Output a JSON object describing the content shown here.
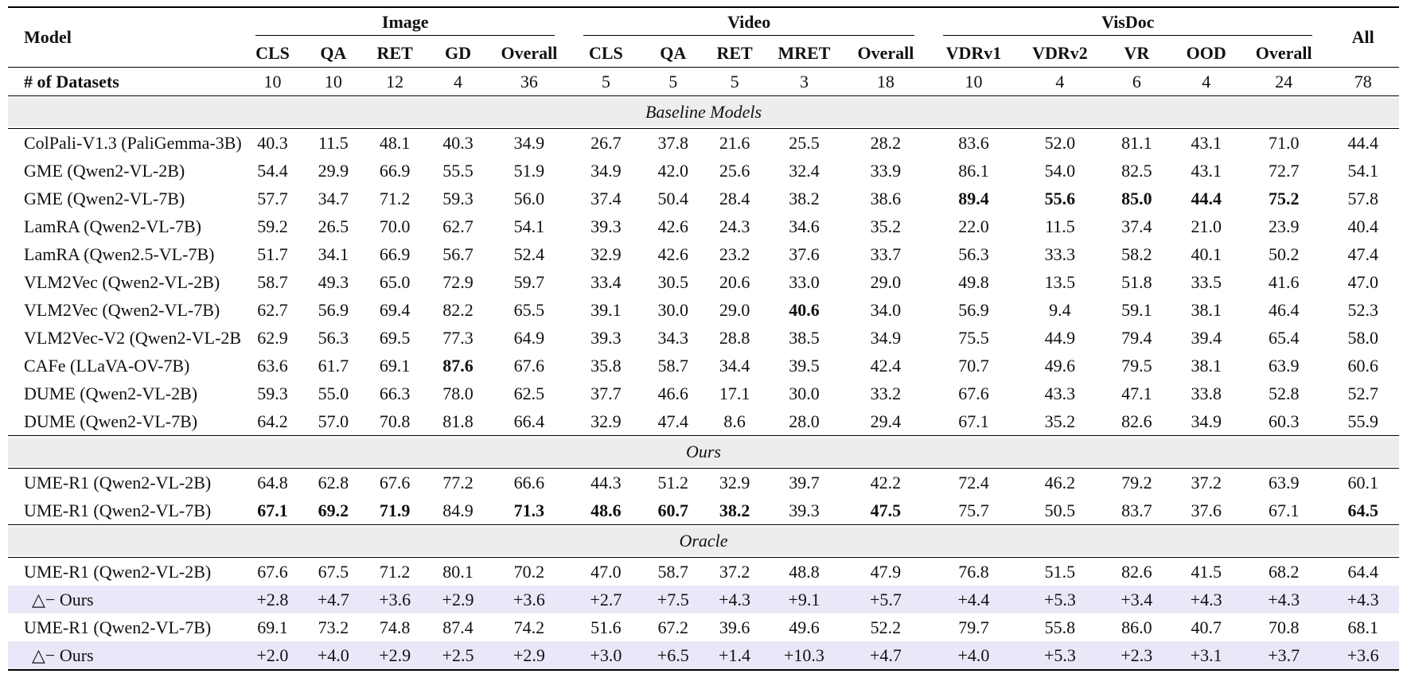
{
  "table": {
    "model_header": "Model",
    "all_header": "All",
    "colors": {
      "band_bg": "#ededed",
      "delta_bg": "#e8e8f8",
      "rule": "#000000"
    },
    "groups": [
      {
        "label": "Image",
        "columns": [
          "CLS",
          "QA",
          "RET",
          "GD",
          "Overall"
        ]
      },
      {
        "label": "Video",
        "columns": [
          "CLS",
          "QA",
          "RET",
          "MRET",
          "Overall"
        ]
      },
      {
        "label": "VisDoc",
        "columns": [
          "VDRv1",
          "VDRv2",
          "VR",
          "OOD",
          "Overall"
        ]
      }
    ],
    "datasets_row": {
      "label": "# of Datasets",
      "values": [
        "10",
        "10",
        "12",
        "4",
        "36",
        "5",
        "5",
        "5",
        "3",
        "18",
        "10",
        "4",
        "6",
        "4",
        "24",
        "78"
      ]
    },
    "sections": [
      {
        "title": "Baseline Models",
        "rows": [
          {
            "model": "ColPali-V1.3 (PaliGemma-3B)",
            "values": [
              "40.3",
              "11.5",
              "48.1",
              "40.3",
              "34.9",
              "26.7",
              "37.8",
              "21.6",
              "25.5",
              "28.2",
              "83.6",
              "52.0",
              "81.1",
              "43.1",
              "71.0",
              "44.4"
            ],
            "bold": [],
            "delta": false
          },
          {
            "model": "GME (Qwen2-VL-2B)",
            "values": [
              "54.4",
              "29.9",
              "66.9",
              "55.5",
              "51.9",
              "34.9",
              "42.0",
              "25.6",
              "32.4",
              "33.9",
              "86.1",
              "54.0",
              "82.5",
              "43.1",
              "72.7",
              "54.1"
            ],
            "bold": [],
            "delta": false
          },
          {
            "model": "GME (Qwen2-VL-7B)",
            "values": [
              "57.7",
              "34.7",
              "71.2",
              "59.3",
              "56.0",
              "37.4",
              "50.4",
              "28.4",
              "38.2",
              "38.6",
              "89.4",
              "55.6",
              "85.0",
              "44.4",
              "75.2",
              "57.8"
            ],
            "bold": [
              10,
              11,
              12,
              13,
              14
            ],
            "delta": false
          },
          {
            "model": "LamRA (Qwen2-VL-7B)",
            "values": [
              "59.2",
              "26.5",
              "70.0",
              "62.7",
              "54.1",
              "39.3",
              "42.6",
              "24.3",
              "34.6",
              "35.2",
              "22.0",
              "11.5",
              "37.4",
              "21.0",
              "23.9",
              "40.4"
            ],
            "bold": [],
            "delta": false
          },
          {
            "model": "LamRA (Qwen2.5-VL-7B)",
            "values": [
              "51.7",
              "34.1",
              "66.9",
              "56.7",
              "52.4",
              "32.9",
              "42.6",
              "23.2",
              "37.6",
              "33.7",
              "56.3",
              "33.3",
              "58.2",
              "40.1",
              "50.2",
              "47.4"
            ],
            "bold": [],
            "delta": false
          },
          {
            "model": "VLM2Vec (Qwen2-VL-2B)",
            "values": [
              "58.7",
              "49.3",
              "65.0",
              "72.9",
              "59.7",
              "33.4",
              "30.5",
              "20.6",
              "33.0",
              "29.0",
              "49.8",
              "13.5",
              "51.8",
              "33.5",
              "41.6",
              "47.0"
            ],
            "bold": [],
            "delta": false
          },
          {
            "model": "VLM2Vec (Qwen2-VL-7B)",
            "values": [
              "62.7",
              "56.9",
              "69.4",
              "82.2",
              "65.5",
              "39.1",
              "30.0",
              "29.0",
              "40.6",
              "34.0",
              "56.9",
              "9.4",
              "59.1",
              "38.1",
              "46.4",
              "52.3"
            ],
            "bold": [
              8
            ],
            "delta": false
          },
          {
            "model": "VLM2Vec-V2 (Qwen2-VL-2B)",
            "values": [
              "62.9",
              "56.3",
              "69.5",
              "77.3",
              "64.9",
              "39.3",
              "34.3",
              "28.8",
              "38.5",
              "34.9",
              "75.5",
              "44.9",
              "79.4",
              "39.4",
              "65.4",
              "58.0"
            ],
            "bold": [],
            "delta": false
          },
          {
            "model": "CAFe (LLaVA-OV-7B)",
            "values": [
              "63.6",
              "61.7",
              "69.1",
              "87.6",
              "67.6",
              "35.8",
              "58.7",
              "34.4",
              "39.5",
              "42.4",
              "70.7",
              "49.6",
              "79.5",
              "38.1",
              "63.9",
              "60.6"
            ],
            "bold": [
              3
            ],
            "delta": false
          },
          {
            "model": "DUME (Qwen2-VL-2B)",
            "values": [
              "59.3",
              "55.0",
              "66.3",
              "78.0",
              "62.5",
              "37.7",
              "46.6",
              "17.1",
              "30.0",
              "33.2",
              "67.6",
              "43.3",
              "47.1",
              "33.8",
              "52.8",
              "52.7"
            ],
            "bold": [],
            "delta": false
          },
          {
            "model": "DUME (Qwen2-VL-7B)",
            "values": [
              "64.2",
              "57.0",
              "70.8",
              "81.8",
              "66.4",
              "32.9",
              "47.4",
              "8.6",
              "28.0",
              "29.4",
              "67.1",
              "35.2",
              "82.6",
              "34.9",
              "60.3",
              "55.9"
            ],
            "bold": [],
            "delta": false
          }
        ]
      },
      {
        "title": "Ours",
        "rows": [
          {
            "model": "UME-R1 (Qwen2-VL-2B)",
            "values": [
              "64.8",
              "62.8",
              "67.6",
              "77.2",
              "66.6",
              "44.3",
              "51.2",
              "32.9",
              "39.7",
              "42.2",
              "72.4",
              "46.2",
              "79.2",
              "37.2",
              "63.9",
              "60.1"
            ],
            "bold": [],
            "delta": false
          },
          {
            "model": "UME-R1 (Qwen2-VL-7B)",
            "values": [
              "67.1",
              "69.2",
              "71.9",
              "84.9",
              "71.3",
              "48.6",
              "60.7",
              "38.2",
              "39.3",
              "47.5",
              "75.7",
              "50.5",
              "83.7",
              "37.6",
              "67.1",
              "64.5"
            ],
            "bold": [
              0,
              1,
              2,
              4,
              5,
              6,
              7,
              9,
              15
            ],
            "delta": false
          }
        ]
      },
      {
        "title": "Oracle",
        "rows": [
          {
            "model": "UME-R1 (Qwen2-VL-2B)",
            "values": [
              "67.6",
              "67.5",
              "71.2",
              "80.1",
              "70.2",
              "47.0",
              "58.7",
              "37.2",
              "48.8",
              "47.9",
              "76.8",
              "51.5",
              "82.6",
              "41.5",
              "68.2",
              "64.4"
            ],
            "bold": [],
            "delta": false
          },
          {
            "model": "△− Ours",
            "values": [
              "+2.8",
              "+4.7",
              "+3.6",
              "+2.9",
              "+3.6",
              "+2.7",
              "+7.5",
              "+4.3",
              "+9.1",
              "+5.7",
              "+4.4",
              "+5.3",
              "+3.4",
              "+4.3",
              "+4.3",
              "+4.3"
            ],
            "bold": [],
            "delta": true
          },
          {
            "model": "UME-R1 (Qwen2-VL-7B)",
            "values": [
              "69.1",
              "73.2",
              "74.8",
              "87.4",
              "74.2",
              "51.6",
              "67.2",
              "39.6",
              "49.6",
              "52.2",
              "79.7",
              "55.8",
              "86.0",
              "40.7",
              "70.8",
              "68.1"
            ],
            "bold": [],
            "delta": false
          },
          {
            "model": "△− Ours",
            "values": [
              "+2.0",
              "+4.0",
              "+2.9",
              "+2.5",
              "+2.9",
              "+3.0",
              "+6.5",
              "+1.4",
              "+10.3",
              "+4.7",
              "+4.0",
              "+5.3",
              "+2.3",
              "+3.1",
              "+3.7",
              "+3.6"
            ],
            "bold": [],
            "delta": true
          }
        ]
      }
    ]
  }
}
